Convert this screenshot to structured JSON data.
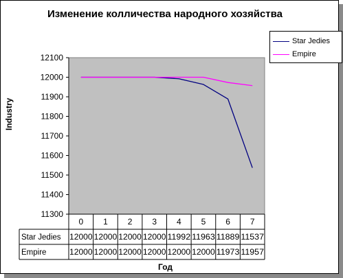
{
  "chart_data": {
    "type": "line",
    "title": "Изменение колличества народного хозяйства",
    "xlabel": "Год",
    "ylabel": "Industry",
    "categories": [
      "0",
      "1",
      "2",
      "3",
      "4",
      "5",
      "6",
      "7"
    ],
    "ylim": [
      11300,
      12100
    ],
    "yticks": [
      "11300",
      "11400",
      "11500",
      "11600",
      "11700",
      "11800",
      "11900",
      "12000",
      "12100"
    ],
    "grid": false,
    "legend_position": "top-right",
    "series": [
      {
        "name": "Star Jedies",
        "color": "#000080",
        "values": [
          12000,
          12000,
          12000,
          12000,
          11992,
          11963,
          11889,
          11537
        ]
      },
      {
        "name": "Empire",
        "color": "#ff00ff",
        "values": [
          12000,
          12000,
          12000,
          12000,
          12000,
          12000,
          11973,
          11957
        ]
      }
    ]
  }
}
